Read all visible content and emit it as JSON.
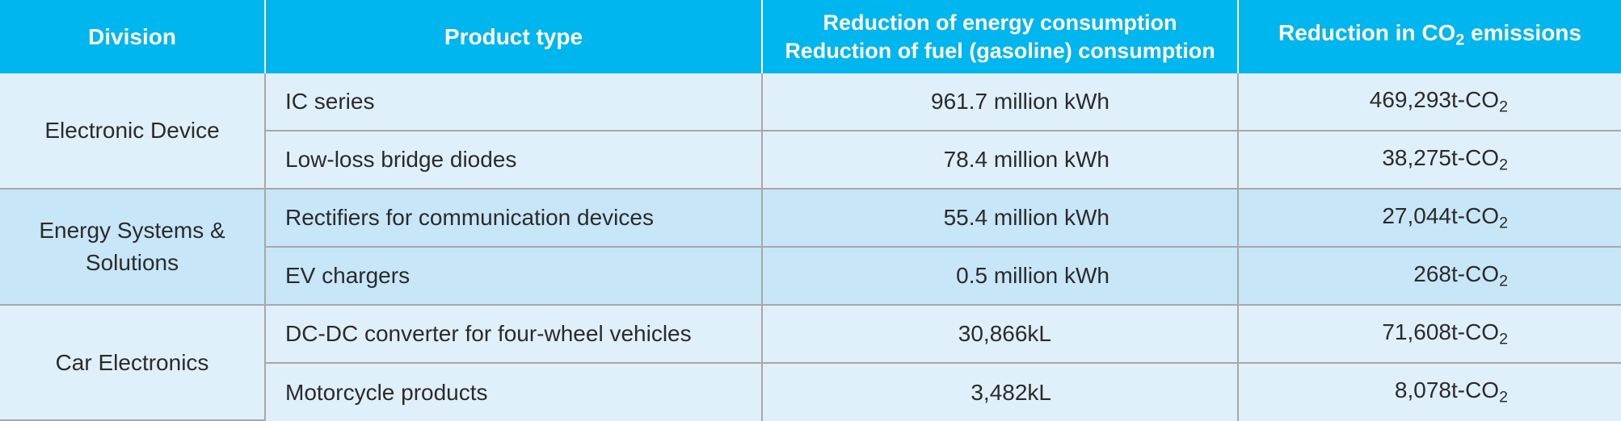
{
  "header": {
    "division": "Division",
    "product_type": "Product type",
    "energy_line1": "Reduction of energy consumption",
    "energy_line2": "Reduction of fuel (gasoline) consumption",
    "co2_prefix": "Reduction in CO",
    "co2_sub": "2",
    "co2_suffix": " emissions"
  },
  "co2_unit_prefix": "t-CO",
  "co2_unit_sub": "2",
  "groups": [
    {
      "division": "Electronic Device",
      "rows": [
        {
          "product": "IC series",
          "energy": "961.7 million kWh",
          "co2_value": "469,293"
        },
        {
          "product": "Low-loss bridge diodes",
          "energy": "78.4 million kWh",
          "co2_value": "38,275"
        }
      ]
    },
    {
      "division_line1": "Energy Systems &",
      "division_line2": "Solutions",
      "rows": [
        {
          "product": "Rectifiers for communication devices",
          "energy": "55.4 million kWh",
          "co2_value": "27,044"
        },
        {
          "product": "EV chargers",
          "energy": "0.5 million kWh",
          "co2_value": "268"
        }
      ]
    },
    {
      "division": "Car Electronics",
      "rows": [
        {
          "product": "DC-DC converter for four-wheel vehicles",
          "energy": "30,866kL",
          "co2_value": "71,608"
        },
        {
          "product": "Motorcycle products",
          "energy": "3,482kL",
          "co2_value": "8,078"
        }
      ]
    }
  ],
  "colors": {
    "header_bg": "#00b6ee",
    "group_light": "#dff0fa",
    "group_mid": "#c7e6f8",
    "grid_line": "#a8a8a8"
  }
}
